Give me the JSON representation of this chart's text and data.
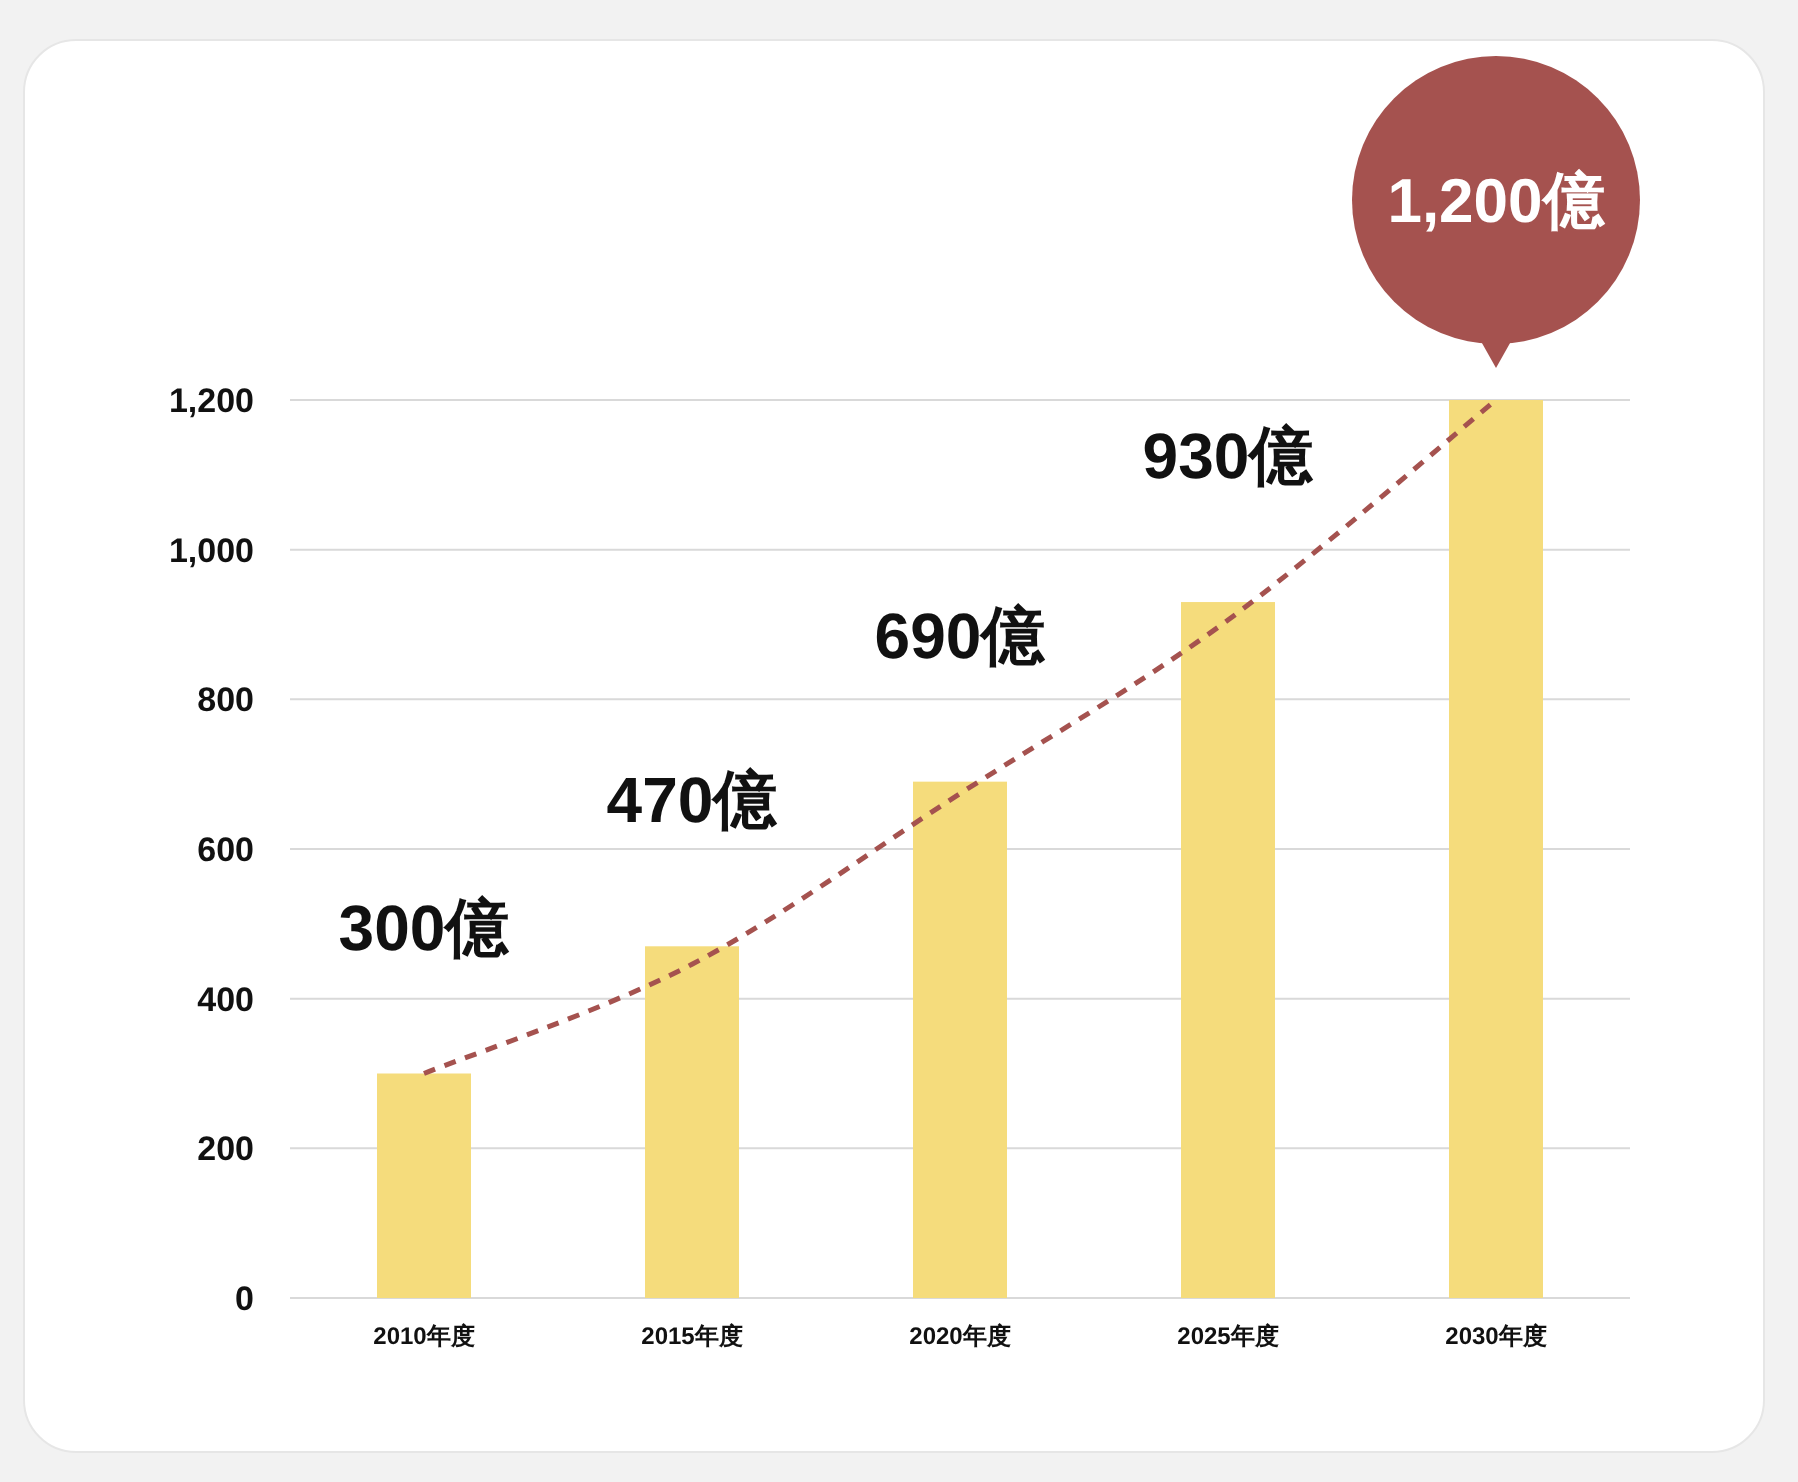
{
  "chart_data": {
    "type": "bar",
    "categories": [
      "2010年度",
      "2015年度",
      "2020年度",
      "2025年度",
      "2030年度"
    ],
    "series": [
      {
        "color": "#f5dc7c",
        "values": [
          300,
          470,
          690,
          930,
          1200
        ],
        "value_labels": [
          "300億",
          "470億",
          "690億",
          "930億",
          "1,200億"
        ]
      },
      {
        "type": "line",
        "color": "#a5524f",
        "line_style": "dashed",
        "values": [
          300,
          446,
          674,
          906,
          1200
        ]
      }
    ],
    "ylim": [
      0,
      1200
    ],
    "yticks": [
      0,
      200,
      400,
      600,
      800,
      {
        "value": 1000,
        "label": "1,000"
      },
      {
        "value": 1200,
        "label": "1,200"
      }
    ],
    "grid": "y"
  }
}
